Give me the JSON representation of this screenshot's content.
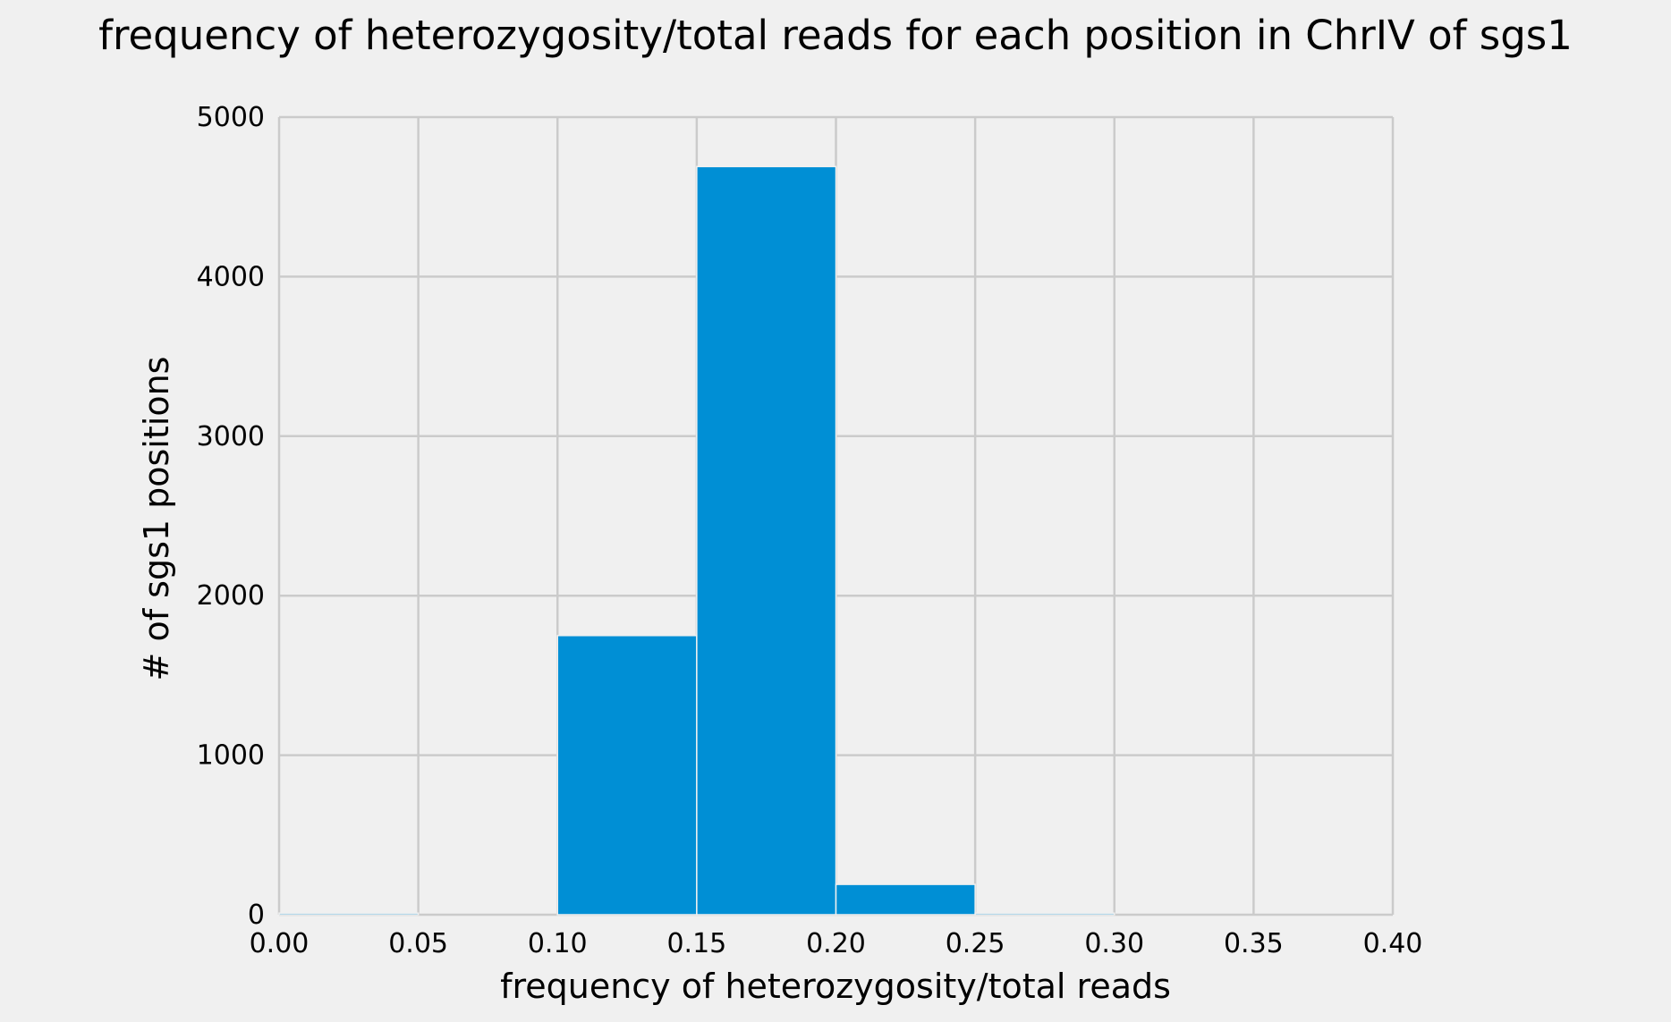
{
  "chart_data": {
    "type": "bar",
    "title": "frequency of heterozygosity/total reads for each position in ChrIV of sgs1",
    "xlabel": "frequency of heterozygosity/total reads",
    "ylabel": "# of sgs1 positions",
    "xlim": [
      0.0,
      0.4
    ],
    "ylim": [
      0,
      5000
    ],
    "xticks": [
      "0.00",
      "0.05",
      "0.10",
      "0.15",
      "0.20",
      "0.25",
      "0.30",
      "0.35",
      "0.40"
    ],
    "yticks": [
      "0",
      "1000",
      "2000",
      "3000",
      "4000",
      "5000"
    ],
    "bins": [
      {
        "start": 0.0,
        "end": 0.05,
        "value": 10
      },
      {
        "start": 0.05,
        "end": 0.1,
        "value": 0
      },
      {
        "start": 0.1,
        "end": 0.15,
        "value": 1750
      },
      {
        "start": 0.15,
        "end": 0.2,
        "value": 4690
      },
      {
        "start": 0.2,
        "end": 0.25,
        "value": 190
      },
      {
        "start": 0.25,
        "end": 0.3,
        "value": 10
      }
    ],
    "grid": true,
    "bar_color": "#008fd5",
    "background_color": "#f0f0f0",
    "grid_color": "#cbcbcb"
  }
}
